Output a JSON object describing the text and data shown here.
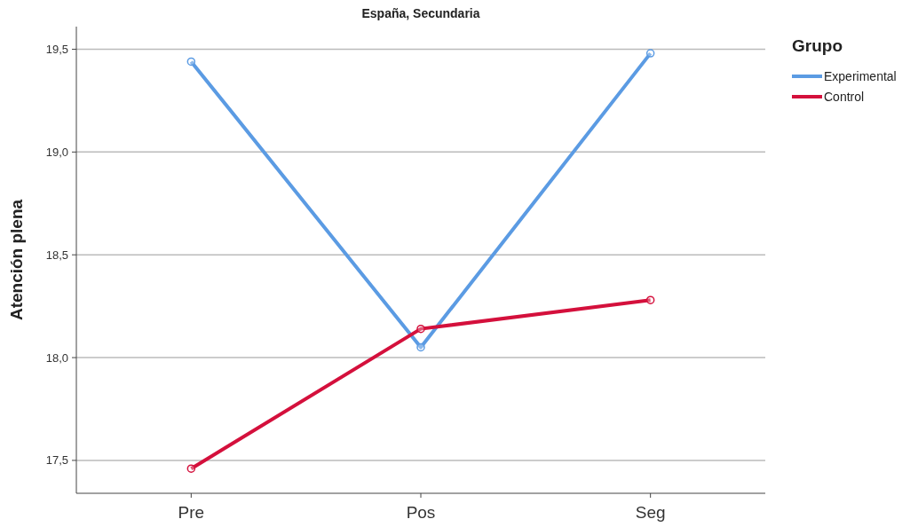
{
  "chart_data": {
    "type": "line",
    "title": "España, Secundaria",
    "ylabel": "Atención plena",
    "legend_title": "Grupo",
    "categories": [
      "Pre",
      "Pos",
      "Seg"
    ],
    "series": [
      {
        "name": "Experimental",
        "color": "#5b9be3",
        "values": [
          19.44,
          18.05,
          19.48
        ]
      },
      {
        "name": "Control",
        "color": "#d4103c",
        "values": [
          17.46,
          18.14,
          18.28
        ]
      }
    ],
    "ylim": [
      17.34,
      19.61
    ],
    "yticks": [
      {
        "value": 17.5,
        "label": "17,5"
      },
      {
        "value": 18,
        "label": "18,0"
      },
      {
        "value": 18.5,
        "label": "18,5"
      },
      {
        "value": 19,
        "label": "19,0"
      },
      {
        "value": 19.5,
        "label": "19,5"
      }
    ],
    "grid": "y",
    "legend": "right",
    "marker": "circle",
    "line_style": "solid"
  }
}
